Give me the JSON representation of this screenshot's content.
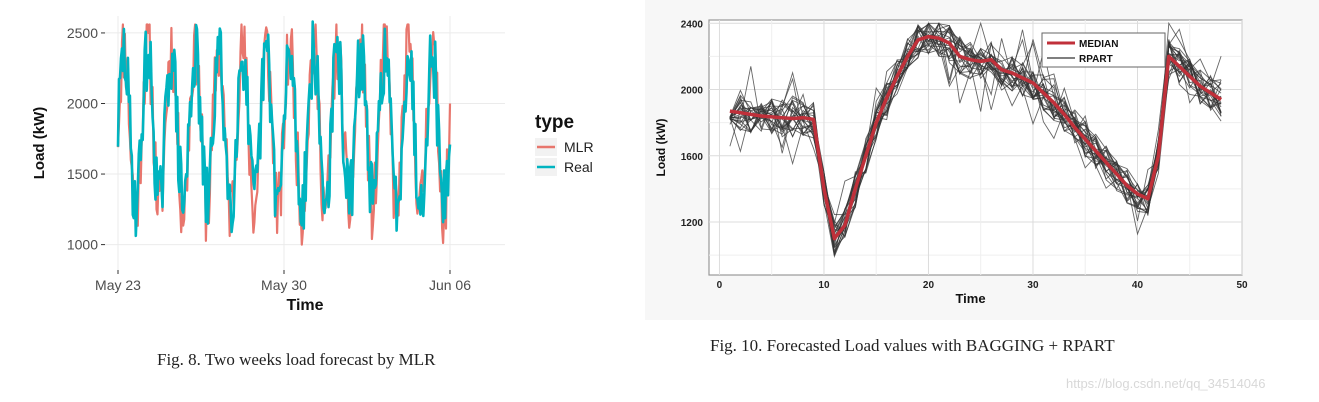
{
  "chart_data": [
    {
      "type": "line",
      "title": "",
      "xlabel": "Time",
      "ylabel": "Load (kW)",
      "x_ticks": [
        "May 23",
        "May 30",
        "Jun 06"
      ],
      "y_ticks": [
        1000,
        1500,
        2000,
        2500
      ],
      "ylim": [
        820,
        2620
      ],
      "xlim_days": [
        0,
        14
      ],
      "grid": true,
      "legend": {
        "title": "type",
        "placement": "right",
        "entries": [
          "MLR",
          "Real"
        ]
      },
      "series": [
        {
          "name": "MLR",
          "color": "#e8766d",
          "range": [
            860,
            2560
          ],
          "band": [
            1250,
            2400
          ],
          "days": 14,
          "samples_per_day": 24
        },
        {
          "name": "Real",
          "color": "#00b4c0",
          "range": [
            820,
            2580
          ],
          "band": [
            1300,
            2350
          ],
          "days": 14,
          "samples_per_day": 24
        }
      ],
      "caption": "Fig. 8.  Two weeks load forecast by MLR"
    },
    {
      "type": "line",
      "title": "",
      "xlabel": "Time",
      "ylabel": "Load (kW)",
      "x_ticks": [
        0,
        10,
        20,
        30,
        40,
        50
      ],
      "y_ticks": [
        1200,
        1600,
        2000,
        2400
      ],
      "xlim": [
        -1,
        50
      ],
      "ylim": [
        880,
        2420
      ],
      "grid": true,
      "legend": {
        "placement": "top-right",
        "entries": [
          "MEDIAN",
          "RPART"
        ]
      },
      "series": [
        {
          "name": "MEDIAN",
          "color": "#c0303a",
          "x": [
            1,
            2,
            3,
            4,
            5,
            6,
            7,
            8,
            9,
            10,
            11,
            12,
            13,
            14,
            15,
            16,
            17,
            18,
            19,
            20,
            21,
            22,
            23,
            24,
            25,
            26,
            27,
            28,
            29,
            30,
            31,
            32,
            33,
            34,
            35,
            36,
            37,
            38,
            39,
            40,
            41,
            42,
            43,
            44,
            45,
            46,
            47,
            48
          ],
          "y": [
            1870,
            1860,
            1850,
            1840,
            1835,
            1830,
            1825,
            1830,
            1820,
            1400,
            1100,
            1180,
            1400,
            1600,
            1800,
            1950,
            2080,
            2200,
            2300,
            2320,
            2310,
            2280,
            2200,
            2180,
            2170,
            2180,
            2120,
            2100,
            2070,
            2040,
            1980,
            1920,
            1850,
            1770,
            1700,
            1630,
            1560,
            1490,
            1420,
            1370,
            1340,
            1600,
            2200,
            2140,
            2080,
            2020,
            1980,
            1940
          ]
        },
        {
          "name": "RPART",
          "color": "#333333",
          "count": 25,
          "spread": 110
        }
      ],
      "caption": "Fig. 10.  Forecasted Load values with BAGGING + RPART"
    }
  ],
  "watermark": "https://blog.csdn.net/qq_34514046"
}
